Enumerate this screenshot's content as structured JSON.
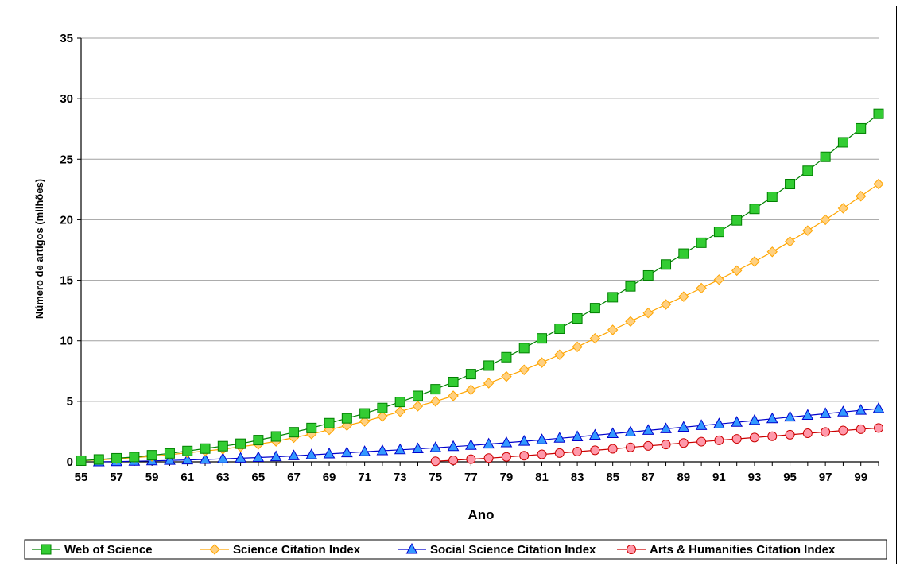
{
  "chart_data": {
    "type": "line",
    "title": "",
    "xlabel": "Ano",
    "ylabel": "Número de artigos (milhões)",
    "xlim": [
      55,
      100
    ],
    "ylim": [
      0,
      35
    ],
    "yticks": [
      "0",
      "5",
      "10",
      "15",
      "20",
      "25",
      "30",
      "35"
    ],
    "xticks": [
      "55",
      "57",
      "59",
      "61",
      "63",
      "65",
      "67",
      "69",
      "71",
      "73",
      "75",
      "77",
      "79",
      "81",
      "83",
      "85",
      "87",
      "89",
      "91",
      "93",
      "95",
      "97",
      "99"
    ],
    "grid": "horizontal",
    "legend_position": "bottom",
    "series": [
      {
        "name": "Web of Science",
        "marker": "square",
        "color": "#008000",
        "marker_fill": "#33CC33",
        "x": [
          55,
          56,
          57,
          58,
          59,
          60,
          61,
          62,
          63,
          64,
          65,
          66,
          67,
          68,
          69,
          70,
          71,
          72,
          73,
          74,
          75,
          76,
          77,
          78,
          79,
          80,
          81,
          82,
          83,
          84,
          85,
          86,
          87,
          88,
          89,
          90,
          91,
          92,
          93,
          94,
          95,
          96,
          97,
          98,
          99,
          100
        ],
        "y": [
          0.1,
          0.2,
          0.3,
          0.4,
          0.55,
          0.7,
          0.9,
          1.1,
          1.3,
          1.5,
          1.8,
          2.1,
          2.45,
          2.8,
          3.2,
          3.6,
          4.0,
          4.45,
          4.95,
          5.45,
          6.0,
          6.6,
          7.25,
          7.95,
          8.65,
          9.4,
          10.2,
          11.0,
          11.85,
          12.7,
          13.6,
          14.5,
          15.4,
          16.3,
          17.2,
          18.1,
          19.0,
          19.95,
          20.9,
          21.9,
          22.95,
          24.05,
          25.2,
          26.4,
          27.55,
          28.75
        ]
      },
      {
        "name": "Science Citation Index",
        "marker": "diamond",
        "color": "#FFA500",
        "marker_fill": "#FFD080",
        "x": [
          55,
          56,
          57,
          58,
          59,
          60,
          61,
          62,
          63,
          64,
          65,
          66,
          67,
          68,
          69,
          70,
          71,
          72,
          73,
          74,
          75,
          76,
          77,
          78,
          79,
          80,
          81,
          82,
          83,
          84,
          85,
          86,
          87,
          88,
          89,
          90,
          91,
          92,
          93,
          94,
          95,
          96,
          97,
          98,
          99,
          100
        ],
        "y": [
          0.1,
          0.15,
          0.25,
          0.35,
          0.45,
          0.6,
          0.75,
          0.9,
          1.05,
          1.25,
          1.45,
          1.7,
          2.0,
          2.3,
          2.65,
          3.0,
          3.35,
          3.75,
          4.15,
          4.6,
          5.0,
          5.45,
          5.95,
          6.5,
          7.05,
          7.6,
          8.2,
          8.85,
          9.5,
          10.2,
          10.9,
          11.6,
          12.3,
          13.0,
          13.65,
          14.35,
          15.05,
          15.8,
          16.55,
          17.35,
          18.2,
          19.1,
          20.0,
          20.95,
          21.95,
          22.95
        ]
      },
      {
        "name": "Social Science Citation Index",
        "marker": "triangle",
        "color": "#0000CC",
        "marker_fill": "#3399FF",
        "x": [
          56,
          57,
          58,
          59,
          60,
          61,
          62,
          63,
          64,
          65,
          66,
          67,
          68,
          69,
          70,
          71,
          72,
          73,
          74,
          75,
          76,
          77,
          78,
          79,
          80,
          81,
          82,
          83,
          84,
          85,
          86,
          87,
          88,
          89,
          90,
          91,
          92,
          93,
          94,
          95,
          96,
          97,
          98,
          99,
          100
        ],
        "y": [
          0.0,
          0.02,
          0.05,
          0.08,
          0.12,
          0.16,
          0.2,
          0.25,
          0.3,
          0.36,
          0.42,
          0.5,
          0.58,
          0.66,
          0.75,
          0.84,
          0.92,
          1.0,
          1.08,
          1.17,
          1.26,
          1.36,
          1.47,
          1.58,
          1.7,
          1.82,
          1.95,
          2.07,
          2.2,
          2.33,
          2.46,
          2.6,
          2.73,
          2.86,
          3.0,
          3.13,
          3.27,
          3.42,
          3.56,
          3.7,
          3.84,
          3.98,
          4.12,
          4.26,
          4.4
        ]
      },
      {
        "name": "Arts & Humanities Citation Index",
        "marker": "circle",
        "color": "#CC0000",
        "marker_fill": "#FF99AA",
        "x": [
          75,
          76,
          77,
          78,
          79,
          80,
          81,
          82,
          83,
          84,
          85,
          86,
          87,
          88,
          89,
          90,
          91,
          92,
          93,
          94,
          95,
          96,
          97,
          98,
          99,
          100
        ],
        "y": [
          0.05,
          0.13,
          0.22,
          0.31,
          0.41,
          0.51,
          0.62,
          0.73,
          0.85,
          0.96,
          1.08,
          1.2,
          1.32,
          1.44,
          1.56,
          1.67,
          1.78,
          1.9,
          2.01,
          2.12,
          2.24,
          2.36,
          2.47,
          2.59,
          2.7,
          2.8
        ]
      }
    ]
  }
}
